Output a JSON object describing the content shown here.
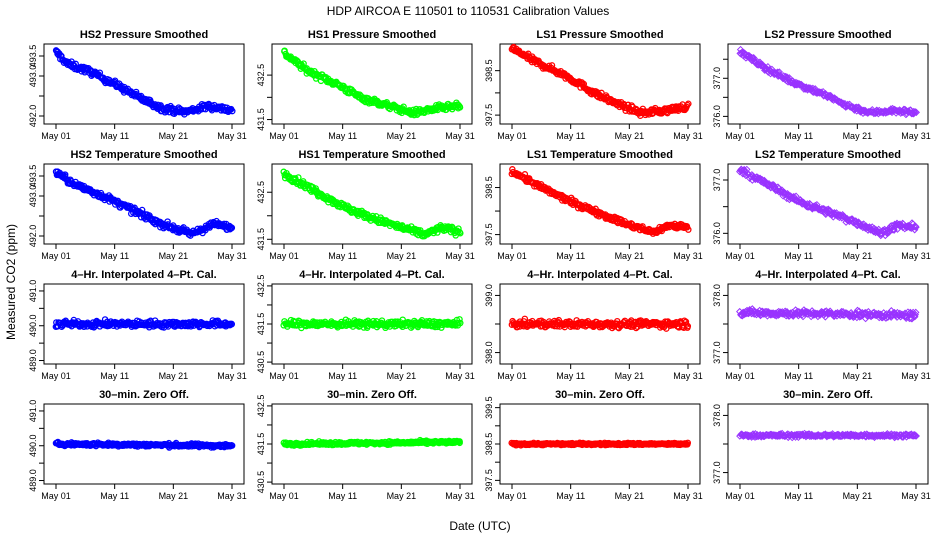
{
  "figure": {
    "title": "HDP    AIRCOA E    110501 to 110531    Calibration Values",
    "xlabel": "Date (UTC)",
    "ylabel": "Measured CO2 (ppm)"
  },
  "chart_data": [
    {
      "type": "scatter",
      "title": "HS2 Pressure Smoothed",
      "color": "#0000ff",
      "marker": "circle",
      "row": 0,
      "col": 0,
      "xticks": [
        "May 01",
        "May 11",
        "May 21",
        "May 31"
      ],
      "xlim": [
        1,
        31
      ],
      "ylim": [
        491.8,
        493.8
      ],
      "yticks": [
        492.0,
        492.5,
        493.0,
        493.5
      ],
      "ytick_labels": [
        "492.0",
        "",
        "493.0",
        "493.5"
      ],
      "trend": [
        [
          1,
          493.6
        ],
        [
          3,
          493.3
        ],
        [
          7,
          493.1
        ],
        [
          11,
          492.8
        ],
        [
          16,
          492.4
        ],
        [
          19,
          492.2
        ],
        [
          23,
          492.1
        ],
        [
          27,
          492.25
        ],
        [
          31,
          492.15
        ]
      ],
      "noise": 0.08
    },
    {
      "type": "scatter",
      "title": "HS1 Pressure Smoothed",
      "color": "#00ff00",
      "marker": "circle",
      "row": 0,
      "col": 1,
      "xticks": [
        "May 01",
        "May 11",
        "May 21",
        "May 31"
      ],
      "xlim": [
        1,
        31
      ],
      "ylim": [
        431.4,
        433.2
      ],
      "yticks": [
        431.5,
        432.0,
        432.5
      ],
      "ytick_labels": [
        "431.5",
        "",
        "432.5"
      ],
      "trend": [
        [
          1,
          433.0
        ],
        [
          5,
          432.6
        ],
        [
          10,
          432.3
        ],
        [
          14,
          432.0
        ],
        [
          19,
          431.8
        ],
        [
          23,
          431.65
        ],
        [
          27,
          431.75
        ],
        [
          31,
          431.8
        ]
      ],
      "noise": 0.07
    },
    {
      "type": "scatter",
      "title": "LS1 Pressure Smoothed",
      "color": "#ff0000",
      "marker": "circle",
      "row": 0,
      "col": 2,
      "xticks": [
        "May 01",
        "May 11",
        "May 21",
        "May 31"
      ],
      "xlim": [
        1,
        31
      ],
      "ylim": [
        397.3,
        399.1
      ],
      "yticks": [
        397.5,
        398.0,
        398.5
      ],
      "ytick_labels": [
        "397.5",
        "",
        "398.5"
      ],
      "trend": [
        [
          1,
          399.0
        ],
        [
          5,
          398.7
        ],
        [
          10,
          398.4
        ],
        [
          15,
          398.0
        ],
        [
          19,
          397.75
        ],
        [
          23,
          397.55
        ],
        [
          27,
          397.6
        ],
        [
          31,
          397.7
        ]
      ],
      "noise": 0.07
    },
    {
      "type": "scatter",
      "title": "LS2 Pressure Smoothed",
      "color": "#9933ff",
      "marker": "diamond",
      "row": 0,
      "col": 3,
      "xticks": [
        "May 01",
        "May 11",
        "May 21",
        "May 31"
      ],
      "xlim": [
        1,
        31
      ],
      "ylim": [
        375.8,
        377.9
      ],
      "yticks": [
        376.0,
        376.5,
        377.0,
        377.5
      ],
      "ytick_labels": [
        "376.0",
        "",
        "377.0",
        ""
      ],
      "trend": [
        [
          1,
          377.7
        ],
        [
          5,
          377.3
        ],
        [
          10,
          376.9
        ],
        [
          15,
          376.6
        ],
        [
          19,
          376.3
        ],
        [
          23,
          376.1
        ],
        [
          27,
          376.15
        ],
        [
          31,
          376.1
        ]
      ],
      "noise": 0.07
    },
    {
      "type": "scatter",
      "title": "HS2 Temperature Smoothed",
      "color": "#0000ff",
      "marker": "circle",
      "row": 1,
      "col": 0,
      "xticks": [
        "May 01",
        "May 11",
        "May 21",
        "May 31"
      ],
      "xlim": [
        1,
        31
      ],
      "ylim": [
        491.8,
        493.8
      ],
      "yticks": [
        492.0,
        492.5,
        493.0,
        493.5
      ],
      "ytick_labels": [
        "492.0",
        "",
        "493.0",
        "493.5"
      ],
      "trend": [
        [
          1,
          493.6
        ],
        [
          4,
          493.3
        ],
        [
          9,
          493.0
        ],
        [
          14,
          492.65
        ],
        [
          19,
          492.3
        ],
        [
          24,
          492.05
        ],
        [
          28,
          492.3
        ],
        [
          31,
          492.2
        ]
      ],
      "noise": 0.08
    },
    {
      "type": "scatter",
      "title": "HS1 Temperature Smoothed",
      "color": "#00ff00",
      "marker": "circle",
      "row": 1,
      "col": 1,
      "xticks": [
        "May 01",
        "May 11",
        "May 21",
        "May 31"
      ],
      "xlim": [
        1,
        31
      ],
      "ylim": [
        431.4,
        433.1
      ],
      "yticks": [
        431.5,
        432.0,
        432.5
      ],
      "ytick_labels": [
        "431.5",
        "",
        "432.5"
      ],
      "trend": [
        [
          1,
          432.9
        ],
        [
          6,
          432.55
        ],
        [
          11,
          432.2
        ],
        [
          16,
          431.95
        ],
        [
          21,
          431.75
        ],
        [
          25,
          431.6
        ],
        [
          28,
          431.75
        ],
        [
          31,
          431.65
        ]
      ],
      "noise": 0.07
    },
    {
      "type": "scatter",
      "title": "LS1 Temperature Smoothed",
      "color": "#ff0000",
      "marker": "circle",
      "row": 1,
      "col": 2,
      "xticks": [
        "May 01",
        "May 11",
        "May 21",
        "May 31"
      ],
      "xlim": [
        1,
        31
      ],
      "ylim": [
        397.3,
        399.0
      ],
      "yticks": [
        397.5,
        398.0,
        398.5
      ],
      "ytick_labels": [
        "397.5",
        "",
        "398.5"
      ],
      "trend": [
        [
          1,
          398.85
        ],
        [
          6,
          398.5
        ],
        [
          11,
          398.2
        ],
        [
          16,
          397.95
        ],
        [
          21,
          397.7
        ],
        [
          25,
          397.55
        ],
        [
          28,
          397.7
        ],
        [
          31,
          397.65
        ]
      ],
      "noise": 0.06
    },
    {
      "type": "scatter",
      "title": "LS2 Temperature Smoothed",
      "color": "#9933ff",
      "marker": "diamond",
      "row": 1,
      "col": 3,
      "xticks": [
        "May 01",
        "May 11",
        "May 21",
        "May 31"
      ],
      "xlim": [
        1,
        31
      ],
      "ylim": [
        375.8,
        377.3
      ],
      "yticks": [
        376.0,
        376.5,
        377.0
      ],
      "ytick_labels": [
        "376.0",
        "",
        "377.0"
      ],
      "trend": [
        [
          1,
          377.2
        ],
        [
          6,
          376.9
        ],
        [
          11,
          376.6
        ],
        [
          16,
          376.4
        ],
        [
          21,
          376.2
        ],
        [
          25,
          376.0
        ],
        [
          28,
          376.15
        ],
        [
          31,
          376.1
        ]
      ],
      "noise": 0.06
    },
    {
      "type": "scatter",
      "title": "4–Hr. Interpolated 4–Pt. Cal.",
      "color": "#0000ff",
      "marker": "circle",
      "row": 2,
      "col": 0,
      "xticks": [
        "May 01",
        "May 11",
        "May 21",
        "May 31"
      ],
      "xlim": [
        1,
        31
      ],
      "ylim": [
        488.9,
        491.2
      ],
      "yticks": [
        489.0,
        489.5,
        490.0,
        490.5,
        491.0
      ],
      "ytick_labels": [
        "489.0",
        "",
        "490.0",
        "",
        "491.0"
      ],
      "trend": [
        [
          1,
          490.05
        ],
        [
          31,
          490.05
        ]
      ],
      "noise": 0.09
    },
    {
      "type": "scatter",
      "title": "4–Hr. Interpolated 4–Pt. Cal.",
      "color": "#00ff00",
      "marker": "circle",
      "row": 2,
      "col": 1,
      "xticks": [
        "May 01",
        "May 11",
        "May 21",
        "May 31"
      ],
      "xlim": [
        1,
        31
      ],
      "ylim": [
        430.45,
        432.55
      ],
      "yticks": [
        430.5,
        431.0,
        431.5,
        432.0,
        432.5
      ],
      "ytick_labels": [
        "430.5",
        "",
        "431.5",
        "",
        "432.5"
      ],
      "trend": [
        [
          1,
          431.5
        ],
        [
          31,
          431.5
        ]
      ],
      "noise": 0.09
    },
    {
      "type": "scatter",
      "title": "4–Hr. Interpolated 4–Pt. Cal.",
      "color": "#ff0000",
      "marker": "circle",
      "row": 2,
      "col": 2,
      "xticks": [
        "May 01",
        "May 11",
        "May 21",
        "May 31"
      ],
      "xlim": [
        1,
        31
      ],
      "ylim": [
        397.8,
        399.2
      ],
      "yticks": [
        398.0,
        398.5,
        399.0
      ],
      "ytick_labels": [
        "398.0",
        "",
        "399.0"
      ],
      "trend": [
        [
          1,
          398.5
        ],
        [
          31,
          398.5
        ]
      ],
      "noise": 0.06
    },
    {
      "type": "scatter",
      "title": "4–Hr. Interpolated 4–Pt. Cal.",
      "color": "#9933ff",
      "marker": "diamond",
      "row": 2,
      "col": 3,
      "xticks": [
        "May 01",
        "May 11",
        "May 21",
        "May 31"
      ],
      "xlim": [
        1,
        31
      ],
      "ylim": [
        376.8,
        378.2
      ],
      "yticks": [
        377.0,
        377.5,
        378.0
      ],
      "ytick_labels": [
        "377.0",
        "",
        "378.0"
      ],
      "trend": [
        [
          1,
          377.7
        ],
        [
          31,
          377.65
        ]
      ],
      "noise": 0.06
    },
    {
      "type": "scatter",
      "title": "30–min. Zero Off.",
      "color": "#0000ff",
      "marker": "circle",
      "row": 3,
      "col": 0,
      "xticks": [
        "May 01",
        "May 11",
        "May 21",
        "May 31"
      ],
      "xlim": [
        1,
        31
      ],
      "ylim": [
        488.9,
        491.2
      ],
      "yticks": [
        489.0,
        489.5,
        490.0,
        490.5,
        491.0
      ],
      "ytick_labels": [
        "489.0",
        "",
        "490.0",
        "",
        "491.0"
      ],
      "trend": [
        [
          1,
          490.05
        ],
        [
          31,
          490.0
        ]
      ],
      "noise": 0.05
    },
    {
      "type": "scatter",
      "title": "30–min. Zero Off.",
      "color": "#00ff00",
      "marker": "circle",
      "row": 3,
      "col": 1,
      "xticks": [
        "May 01",
        "May 11",
        "May 21",
        "May 31"
      ],
      "xlim": [
        1,
        31
      ],
      "ylim": [
        430.45,
        432.55
      ],
      "yticks": [
        430.5,
        431.0,
        431.5,
        432.0,
        432.5
      ],
      "ytick_labels": [
        "430.5",
        "",
        "431.5",
        "",
        "432.5"
      ],
      "trend": [
        [
          1,
          431.5
        ],
        [
          31,
          431.55
        ]
      ],
      "noise": 0.04
    },
    {
      "type": "scatter",
      "title": "30–min. Zero Off.",
      "color": "#ff0000",
      "marker": "circle",
      "row": 3,
      "col": 2,
      "xticks": [
        "May 01",
        "May 11",
        "May 21",
        "May 31"
      ],
      "xlim": [
        1,
        31
      ],
      "ylim": [
        397.4,
        399.6
      ],
      "yticks": [
        397.5,
        398.0,
        398.5,
        399.0,
        399.5
      ],
      "ytick_labels": [
        "397.5",
        "",
        "398.5",
        "",
        "399.5"
      ],
      "trend": [
        [
          1,
          398.5
        ],
        [
          31,
          398.5
        ]
      ],
      "noise": 0.03
    },
    {
      "type": "scatter",
      "title": "30–min. Zero Off.",
      "color": "#9933ff",
      "marker": "diamond",
      "row": 3,
      "col": 3,
      "xticks": [
        "May 01",
        "May 11",
        "May 21",
        "May 31"
      ],
      "xlim": [
        1,
        31
      ],
      "ylim": [
        376.8,
        378.2
      ],
      "yticks": [
        377.0,
        377.5,
        378.0
      ],
      "ytick_labels": [
        "377.0",
        "",
        "378.0"
      ],
      "trend": [
        [
          1,
          377.65
        ],
        [
          31,
          377.65
        ]
      ],
      "noise": 0.03
    }
  ]
}
